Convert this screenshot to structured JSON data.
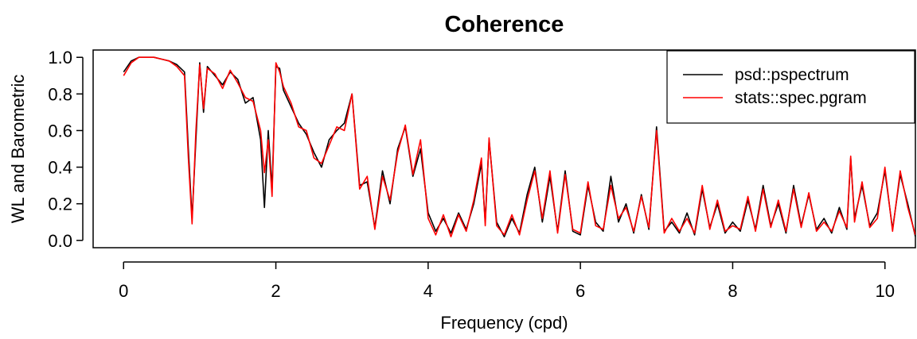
{
  "chart_data": {
    "type": "line",
    "title": "Coherence",
    "xlabel": "Frequency (cpd)",
    "ylabel": "WL and Barometric",
    "xlim": [
      -0.4,
      10.4
    ],
    "ylim": [
      -0.04,
      1.04
    ],
    "xticks": [
      "0",
      "2",
      "4",
      "6",
      "8",
      "10"
    ],
    "yticks": [
      "0.0",
      "0.2",
      "0.4",
      "0.6",
      "0.8",
      "1.0"
    ],
    "grid": false,
    "legend_position": "top-right",
    "series": [
      {
        "name": "psd::pspectrum",
        "color": "#000000",
        "x": [
          0.0,
          0.1,
          0.2,
          0.3,
          0.4,
          0.5,
          0.6,
          0.7,
          0.8,
          0.85,
          0.9,
          0.95,
          1.0,
          1.05,
          1.1,
          1.2,
          1.3,
          1.4,
          1.5,
          1.6,
          1.7,
          1.8,
          1.85,
          1.9,
          1.95,
          2.0,
          2.05,
          2.1,
          2.2,
          2.3,
          2.4,
          2.5,
          2.6,
          2.7,
          2.8,
          2.9,
          3.0,
          3.1,
          3.2,
          3.3,
          3.4,
          3.5,
          3.6,
          3.7,
          3.8,
          3.9,
          4.0,
          4.1,
          4.2,
          4.3,
          4.4,
          4.5,
          4.6,
          4.7,
          4.75,
          4.8,
          4.9,
          5.0,
          5.1,
          5.2,
          5.3,
          5.4,
          5.5,
          5.6,
          5.7,
          5.8,
          5.9,
          6.0,
          6.1,
          6.2,
          6.3,
          6.4,
          6.5,
          6.6,
          6.7,
          6.8,
          6.9,
          7.0,
          7.1,
          7.2,
          7.3,
          7.4,
          7.5,
          7.6,
          7.7,
          7.8,
          7.9,
          8.0,
          8.1,
          8.2,
          8.3,
          8.4,
          8.5,
          8.6,
          8.7,
          8.8,
          8.9,
          9.0,
          9.1,
          9.2,
          9.3,
          9.4,
          9.5,
          9.55,
          9.6,
          9.7,
          9.8,
          9.9,
          10.0,
          10.1,
          10.2,
          10.3,
          10.4
        ],
        "values": [
          0.92,
          0.98,
          1.0,
          1.0,
          1.0,
          0.99,
          0.98,
          0.96,
          0.92,
          0.5,
          0.12,
          0.55,
          0.97,
          0.7,
          0.95,
          0.9,
          0.85,
          0.92,
          0.88,
          0.75,
          0.78,
          0.55,
          0.18,
          0.6,
          0.28,
          0.95,
          0.94,
          0.82,
          0.73,
          0.64,
          0.58,
          0.48,
          0.4,
          0.55,
          0.6,
          0.64,
          0.8,
          0.3,
          0.32,
          0.07,
          0.38,
          0.2,
          0.5,
          0.62,
          0.35,
          0.5,
          0.15,
          0.05,
          0.12,
          0.04,
          0.15,
          0.06,
          0.2,
          0.42,
          0.1,
          0.55,
          0.1,
          0.02,
          0.12,
          0.04,
          0.25,
          0.4,
          0.1,
          0.35,
          0.05,
          0.38,
          0.05,
          0.03,
          0.3,
          0.1,
          0.05,
          0.35,
          0.1,
          0.2,
          0.04,
          0.25,
          0.06,
          0.62,
          0.05,
          0.1,
          0.04,
          0.15,
          0.03,
          0.28,
          0.07,
          0.2,
          0.04,
          0.1,
          0.05,
          0.22,
          0.06,
          0.3,
          0.08,
          0.2,
          0.04,
          0.3,
          0.08,
          0.25,
          0.06,
          0.12,
          0.04,
          0.18,
          0.06,
          0.45,
          0.12,
          0.3,
          0.08,
          0.15,
          0.38,
          0.06,
          0.36,
          0.2,
          0.02
        ]
      },
      {
        "name": "stats::spec.pgram",
        "color": "#ff0000",
        "x": [
          0.0,
          0.1,
          0.2,
          0.3,
          0.4,
          0.5,
          0.6,
          0.7,
          0.8,
          0.85,
          0.9,
          0.95,
          1.0,
          1.05,
          1.1,
          1.2,
          1.3,
          1.4,
          1.5,
          1.6,
          1.7,
          1.8,
          1.85,
          1.9,
          1.95,
          2.0,
          2.05,
          2.1,
          2.2,
          2.3,
          2.4,
          2.5,
          2.6,
          2.7,
          2.8,
          2.9,
          3.0,
          3.1,
          3.2,
          3.3,
          3.4,
          3.5,
          3.6,
          3.7,
          3.8,
          3.9,
          4.0,
          4.1,
          4.2,
          4.3,
          4.4,
          4.5,
          4.6,
          4.7,
          4.75,
          4.8,
          4.9,
          5.0,
          5.1,
          5.2,
          5.3,
          5.4,
          5.5,
          5.6,
          5.7,
          5.8,
          5.9,
          6.0,
          6.1,
          6.2,
          6.3,
          6.4,
          6.5,
          6.6,
          6.7,
          6.8,
          6.9,
          7.0,
          7.1,
          7.2,
          7.3,
          7.4,
          7.5,
          7.6,
          7.7,
          7.8,
          7.9,
          8.0,
          8.1,
          8.2,
          8.3,
          8.4,
          8.5,
          8.6,
          8.7,
          8.8,
          8.9,
          9.0,
          9.1,
          9.2,
          9.3,
          9.4,
          9.5,
          9.55,
          9.6,
          9.7,
          9.8,
          9.9,
          10.0,
          10.1,
          10.2,
          10.3,
          10.4
        ],
        "values": [
          0.9,
          0.97,
          1.0,
          1.0,
          1.0,
          0.99,
          0.98,
          0.95,
          0.9,
          0.45,
          0.09,
          0.6,
          0.96,
          0.72,
          0.94,
          0.91,
          0.83,
          0.93,
          0.86,
          0.78,
          0.76,
          0.6,
          0.37,
          0.55,
          0.24,
          0.97,
          0.92,
          0.84,
          0.75,
          0.62,
          0.6,
          0.45,
          0.42,
          0.52,
          0.62,
          0.6,
          0.8,
          0.28,
          0.35,
          0.06,
          0.35,
          0.22,
          0.48,
          0.63,
          0.36,
          0.55,
          0.12,
          0.03,
          0.14,
          0.02,
          0.14,
          0.05,
          0.22,
          0.45,
          0.08,
          0.56,
          0.08,
          0.03,
          0.14,
          0.03,
          0.22,
          0.38,
          0.12,
          0.38,
          0.04,
          0.36,
          0.06,
          0.04,
          0.32,
          0.08,
          0.06,
          0.3,
          0.12,
          0.18,
          0.05,
          0.24,
          0.07,
          0.6,
          0.04,
          0.12,
          0.05,
          0.12,
          0.04,
          0.3,
          0.06,
          0.22,
          0.05,
          0.08,
          0.06,
          0.24,
          0.05,
          0.28,
          0.07,
          0.22,
          0.05,
          0.28,
          0.07,
          0.26,
          0.05,
          0.1,
          0.05,
          0.16,
          0.07,
          0.46,
          0.1,
          0.32,
          0.07,
          0.12,
          0.4,
          0.05,
          0.38,
          0.18,
          0.03
        ]
      }
    ]
  }
}
